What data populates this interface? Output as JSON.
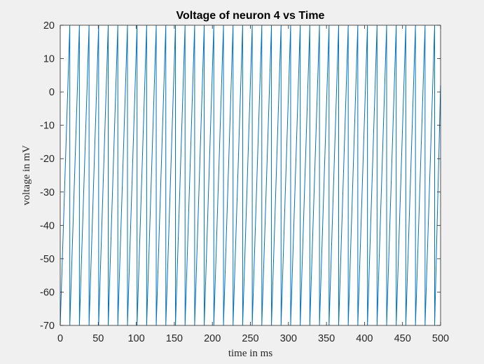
{
  "chart_data": {
    "type": "line",
    "title": "Voltage of neuron 4 vs Time",
    "xlabel": "time in ms",
    "ylabel": "voltage in mV",
    "xlim": [
      0,
      500
    ],
    "ylim": [
      -70,
      20
    ],
    "xticks": [
      0,
      50,
      100,
      150,
      200,
      250,
      300,
      350,
      400,
      450,
      500
    ],
    "yticks": [
      -70,
      -60,
      -50,
      -40,
      -30,
      -20,
      -10,
      0,
      10,
      20
    ],
    "grid": false,
    "legend": "none",
    "series_color": "#0072BD",
    "series": [
      {
        "reset_value": -70,
        "spike_threshold": 20,
        "spike_times": [
          12.6,
          25.2,
          37.9,
          50.5,
          63.1,
          75.7,
          88.4,
          101.0,
          113.6,
          126.2,
          138.8,
          151.5,
          164.1,
          176.7,
          189.3,
          201.9,
          214.6,
          227.2,
          239.8,
          252.4,
          265.0,
          277.7,
          290.3,
          302.9,
          315.5,
          328.1,
          340.8,
          353.4,
          366.0,
          378.6,
          391.2,
          403.9,
          416.5,
          429.1,
          441.7,
          454.3,
          467.0,
          479.6,
          492.2
        ],
        "end_value": 2
      }
    ]
  }
}
